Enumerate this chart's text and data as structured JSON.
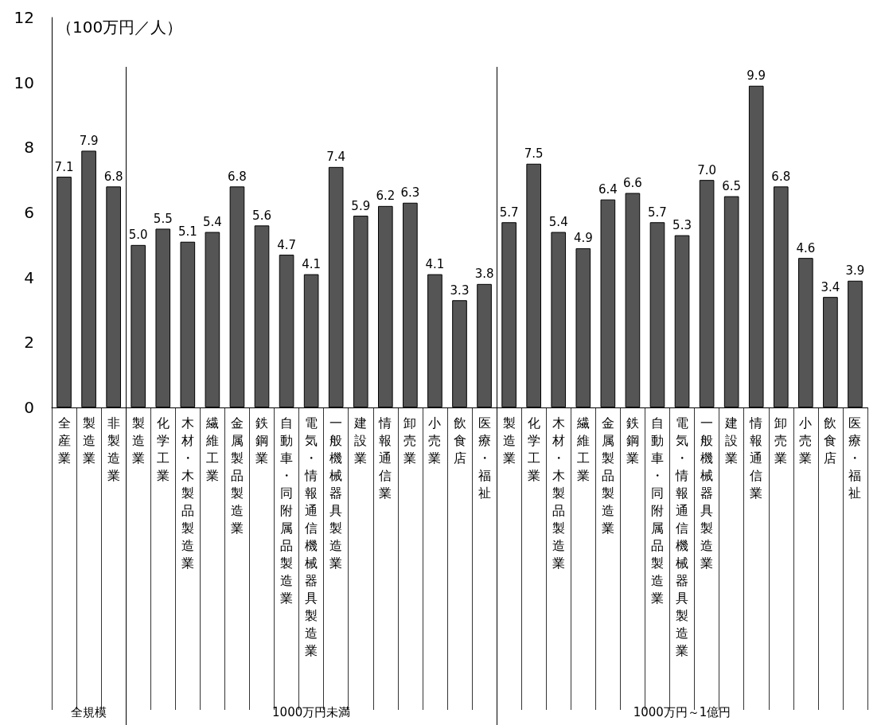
{
  "chart_data": {
    "type": "bar",
    "ylabel": "（100万円／人）",
    "categories": [
      "全産業",
      "製造業",
      "非製造業",
      "製造業",
      "化学工業",
      "木材・木製品製造業",
      "繊維工業",
      "金属製品製造業",
      "鉄鋼業",
      "自動車・同附属品製造業",
      "電気・情報通信機械器具製造業",
      "一般機械器具製造業",
      "建設業",
      "情報通信業",
      "卸売業",
      "小売業",
      "飲食店",
      "医療・福祉",
      "製造業",
      "化学工業",
      "木材・木製品製造業",
      "繊維工業",
      "金属製品製造業",
      "鉄鋼業",
      "自動車・同附属品製造業",
      "電気・情報通信機械器具製造業",
      "一般機械器具製造業",
      "建設業",
      "情報通信業",
      "卸売業",
      "小売業",
      "飲食店",
      "医療・福祉"
    ],
    "series": [
      {
        "color": "#555555",
        "values": [
          7.1,
          7.9,
          6.8,
          null,
          null,
          null,
          null,
          null,
          null,
          null,
          null,
          null,
          null,
          null,
          null,
          null,
          null,
          null,
          null,
          null,
          null,
          null,
          null,
          null,
          null,
          null,
          null,
          null,
          null,
          null,
          null,
          null,
          null
        ],
        "value_labels": [
          "7.1",
          "7.9",
          "6.8",
          null,
          null,
          null,
          null,
          null,
          null,
          null,
          null,
          null,
          null,
          null,
          null,
          null,
          null,
          null,
          null,
          null,
          null,
          null,
          null,
          null,
          null,
          null,
          null,
          null,
          null,
          null,
          null,
          null,
          null
        ]
      },
      {
        "color": "#555555",
        "values": [
          null,
          null,
          null,
          5.0,
          5.5,
          5.1,
          5.4,
          6.8,
          5.6,
          4.7,
          4.1,
          7.4,
          5.9,
          6.2,
          6.3,
          4.1,
          3.3,
          3.8,
          null,
          null,
          null,
          null,
          null,
          null,
          null,
          null,
          null,
          null,
          null,
          null,
          null,
          null,
          null
        ],
        "value_labels": [
          null,
          null,
          null,
          "5.0",
          "5.5",
          "5.1",
          "5.4",
          "6.8",
          "5.6",
          "4.7",
          "4.1",
          "7.4",
          "5.9",
          "6.2",
          "6.3",
          "4.1",
          "3.3",
          "3.8",
          null,
          null,
          null,
          null,
          null,
          null,
          null,
          null,
          null,
          null,
          null,
          null,
          null,
          null,
          null
        ]
      },
      {
        "color": "#555555",
        "values": [
          null,
          null,
          null,
          null,
          null,
          null,
          null,
          null,
          null,
          null,
          null,
          null,
          null,
          null,
          null,
          null,
          null,
          null,
          5.7,
          7.5,
          5.4,
          4.9,
          6.4,
          6.6,
          5.7,
          5.3,
          7.0,
          6.5,
          9.9,
          6.8,
          4.6,
          3.4,
          3.9
        ],
        "value_labels": [
          null,
          null,
          null,
          null,
          null,
          null,
          null,
          null,
          null,
          null,
          null,
          null,
          null,
          null,
          null,
          null,
          null,
          null,
          "5.7",
          "7.5",
          "5.4",
          "4.9",
          "6.4",
          "6.6",
          "5.7",
          "5.3",
          "7.0",
          "6.5",
          "9.9",
          "6.8",
          "4.6",
          "3.4",
          "3.9"
        ]
      }
    ],
    "annotations": [
      "全規模",
      "1000万円未満",
      "1000万円～1億円"
    ],
    "ylim": [
      0,
      12
    ],
    "yticks": [
      0,
      2,
      4,
      6,
      8,
      10,
      12
    ],
    "grid": false
  }
}
